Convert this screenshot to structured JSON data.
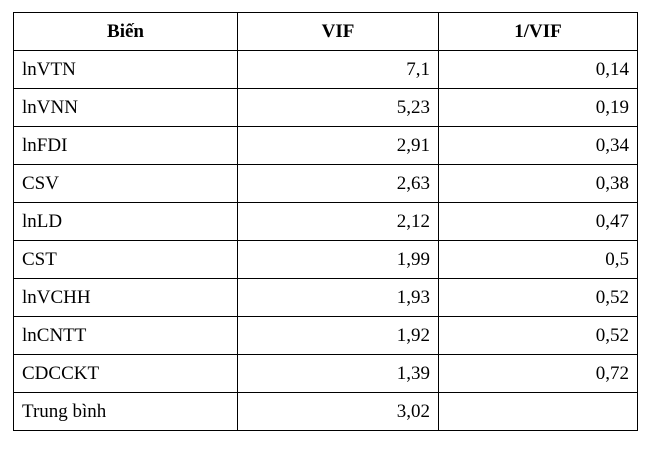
{
  "table": {
    "header": [
      "Biến",
      "VIF",
      "1/VIF"
    ],
    "rows": [
      [
        "lnVTN",
        "7,1",
        "0,14"
      ],
      [
        "lnVNN",
        "5,23",
        "0,19"
      ],
      [
        "lnFDI",
        "2,91",
        "0,34"
      ],
      [
        "CSV",
        "2,63",
        "0,38"
      ],
      [
        "lnLD",
        "2,12",
        "0,47"
      ],
      [
        "CST",
        "1,99",
        "0,5"
      ],
      [
        "lnVCHH",
        "1,93",
        "0,52"
      ],
      [
        "lnCNTT",
        "1,92",
        "0,52"
      ],
      [
        "CDCCKT",
        "1,39",
        "0,72"
      ],
      [
        "Trung bình",
        "3,02"
      ]
    ]
  }
}
